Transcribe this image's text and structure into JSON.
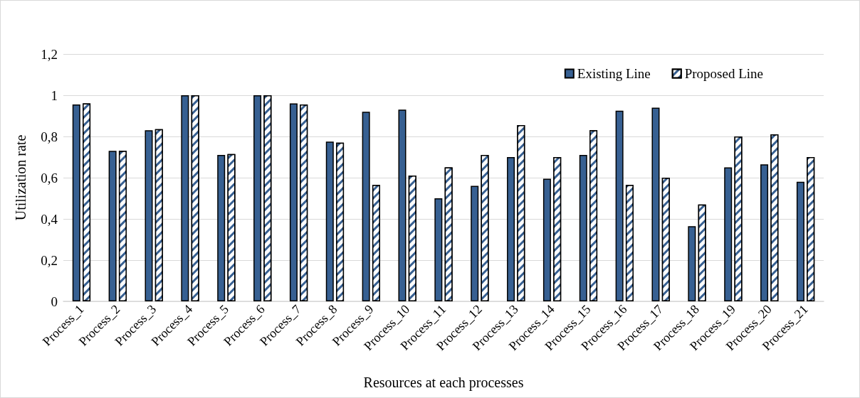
{
  "chart_data": {
    "type": "bar",
    "xlabel": "Resources at each processes",
    "ylabel": "Utilization rate",
    "categories": [
      "Process_1",
      "Process_2",
      "Process_3",
      "Process_4",
      "Process_5",
      "Process_6",
      "Process_7",
      "Process_8",
      "Process_9",
      "Process_10",
      "Process_11",
      "Process_12",
      "Process_13",
      "Process_14",
      "Process_15",
      "Process_16",
      "Process_17",
      "Process_18",
      "Process_19",
      "Process_20",
      "Process_21"
    ],
    "series": [
      {
        "name": "Existing Line",
        "color": "#376092",
        "values": [
          0.955,
          0.73,
          0.83,
          1,
          0.71,
          1,
          0.96,
          0.775,
          0.92,
          0.93,
          0.5,
          0.56,
          0.7,
          0.595,
          0.71,
          0.925,
          0.94,
          0.365,
          0.65,
          0.665,
          0.58
        ]
      },
      {
        "name": "Proposed Line",
        "color": "#376092",
        "values": [
          0.96,
          0.73,
          0.835,
          1,
          0.715,
          1,
          0.955,
          0.77,
          0.565,
          0.61,
          0.65,
          0.71,
          0.855,
          0.7,
          0.83,
          0.565,
          0.6,
          0.47,
          0.8,
          0.81,
          0.7
        ]
      }
    ],
    "ylim": [
      0,
      1.2
    ],
    "yticks": [
      0,
      {
        "value": 0.2,
        "label": "0,2"
      },
      {
        "value": 0.4,
        "label": "0,4"
      },
      {
        "value": 0.6,
        "label": "0,6"
      },
      {
        "value": 0.8,
        "label": "0,8"
      },
      1,
      {
        "value": 1.2,
        "label": "1,2"
      }
    ],
    "grid": "y",
    "legend": "top right"
  }
}
